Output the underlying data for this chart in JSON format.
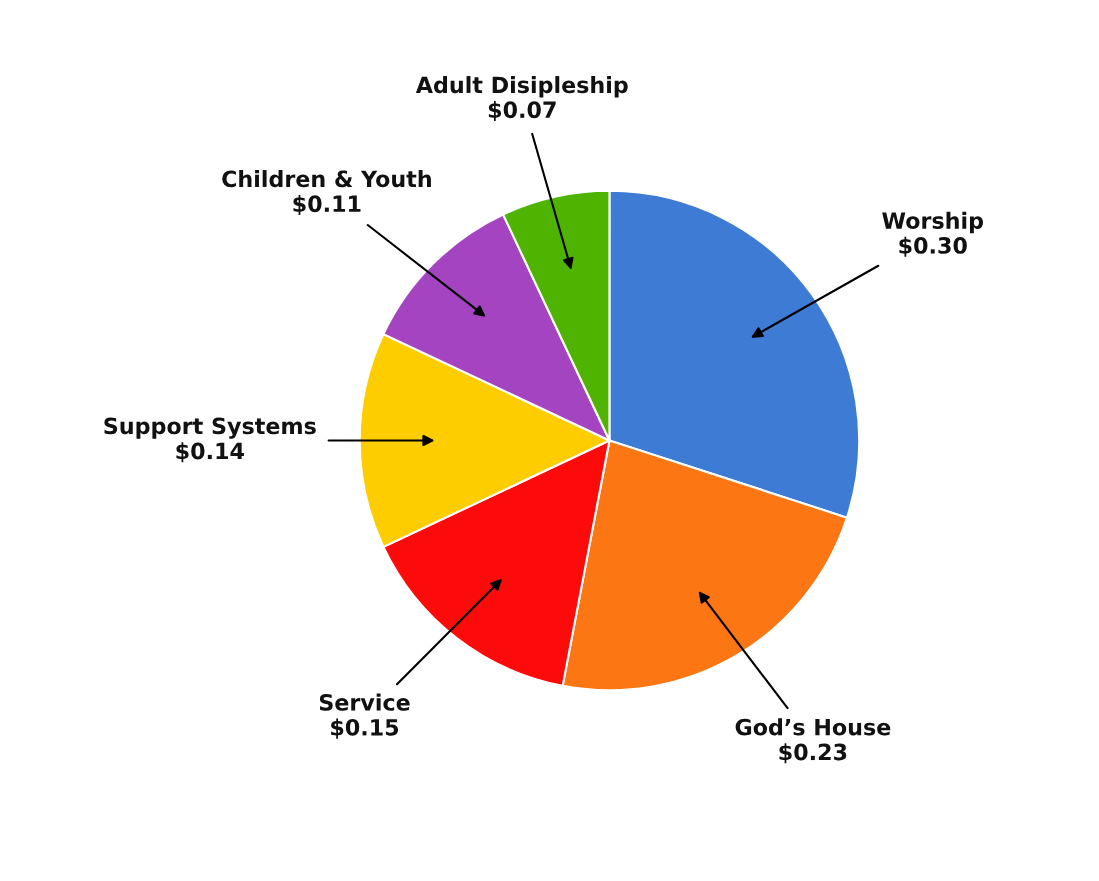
{
  "chart_data": {
    "type": "pie",
    "categories": [
      "Worship",
      "God’s House",
      "Service",
      "Support Systems",
      "Children & Youth",
      "Adult Disipleship"
    ],
    "values": [
      0.3,
      0.23,
      0.15,
      0.14,
      0.11,
      0.07
    ],
    "value_labels": [
      "$0.30",
      "$0.23",
      "$0.15",
      "$0.14",
      "$0.11",
      "$0.07"
    ],
    "colors": [
      "#3e7bd4",
      "#fd7614",
      "#fd0a0a",
      "#fecd00",
      "#a444c0",
      "#4fb401"
    ],
    "legend": false
  }
}
